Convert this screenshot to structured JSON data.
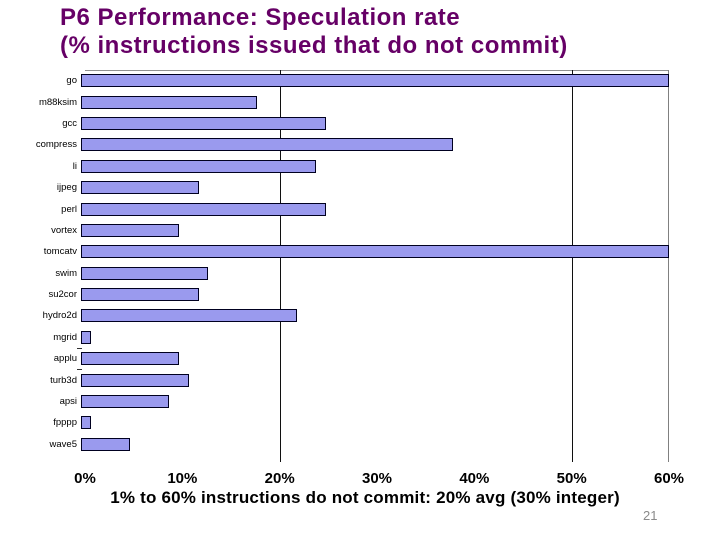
{
  "slide": {
    "title_line1": "P6 Performance: Speculation rate",
    "title_line2": "(% instructions issued that do not commit)",
    "caption": "1% to 60% instructions do not commit: 20% avg (30% integer)",
    "page_number": "21",
    "title_color": "#660066"
  },
  "chart_data": {
    "type": "bar",
    "orientation": "horizontal",
    "title": "P6 Performance: Speculation rate (% instructions issued that do not commit)",
    "categories": [
      "go",
      "m88ksim",
      "gcc",
      "compress",
      "li",
      "ijpeg",
      "perl",
      "vortex",
      "tomcatv",
      "swim",
      "su2cor",
      "hydro2d",
      "mgrid",
      "applu",
      "turb3d",
      "apsi",
      "fpppp",
      "wave5"
    ],
    "values": [
      60,
      18,
      25,
      38,
      24,
      12,
      25,
      10,
      60,
      13,
      12,
      22,
      1,
      10,
      11,
      9,
      1,
      5
    ],
    "unit": "%",
    "xlabel": "",
    "ylabel": "",
    "xlim": [
      0,
      60
    ],
    "x_tick_labels": [
      "0%",
      "10%",
      "20%",
      "30%",
      "40%",
      "50%",
      "60%"
    ],
    "gridlines_at_percent": [
      20,
      50
    ],
    "grid_color": "#101010",
    "bar_fill": "#9a9aee",
    "bar_border": "#000020",
    "legend": "none"
  }
}
